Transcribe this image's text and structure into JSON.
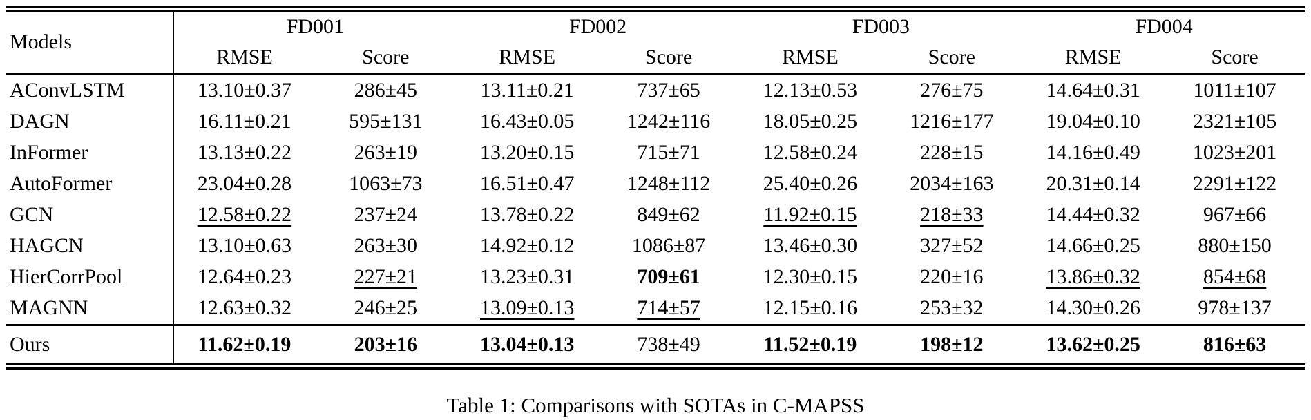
{
  "caption": "Table 1: Comparisons with SOTAs in C-MAPSS",
  "table": {
    "corner_label": "Models",
    "groups": [
      "FD001",
      "FD002",
      "FD003",
      "FD004"
    ],
    "subheaders": [
      "RMSE",
      "Score"
    ],
    "rows": [
      {
        "model": "AConvLSTM",
        "separator_above": false,
        "cells": [
          {
            "text": "13.10±0.37",
            "style": "plain"
          },
          {
            "text": "286±45",
            "style": "plain"
          },
          {
            "text": "13.11±0.21",
            "style": "plain"
          },
          {
            "text": "737±65",
            "style": "plain"
          },
          {
            "text": "12.13±0.53",
            "style": "plain"
          },
          {
            "text": "276±75",
            "style": "plain"
          },
          {
            "text": "14.64±0.31",
            "style": "plain"
          },
          {
            "text": "1011±107",
            "style": "plain"
          }
        ]
      },
      {
        "model": "DAGN",
        "separator_above": false,
        "cells": [
          {
            "text": "16.11±0.21",
            "style": "plain"
          },
          {
            "text": "595±131",
            "style": "plain"
          },
          {
            "text": "16.43±0.05",
            "style": "plain"
          },
          {
            "text": "1242±116",
            "style": "plain"
          },
          {
            "text": "18.05±0.25",
            "style": "plain"
          },
          {
            "text": "1216±177",
            "style": "plain"
          },
          {
            "text": "19.04±0.10",
            "style": "plain"
          },
          {
            "text": "2321±105",
            "style": "plain"
          }
        ]
      },
      {
        "model": "InFormer",
        "separator_above": false,
        "cells": [
          {
            "text": "13.13±0.22",
            "style": "plain"
          },
          {
            "text": "263±19",
            "style": "plain"
          },
          {
            "text": "13.20±0.15",
            "style": "plain"
          },
          {
            "text": "715±71",
            "style": "plain"
          },
          {
            "text": "12.58±0.24",
            "style": "plain"
          },
          {
            "text": "228±15",
            "style": "plain"
          },
          {
            "text": "14.16±0.49",
            "style": "plain"
          },
          {
            "text": "1023±201",
            "style": "plain"
          }
        ]
      },
      {
        "model": "AutoFormer",
        "separator_above": false,
        "cells": [
          {
            "text": "23.04±0.28",
            "style": "plain"
          },
          {
            "text": "1063±73",
            "style": "plain"
          },
          {
            "text": "16.51±0.47",
            "style": "plain"
          },
          {
            "text": "1248±112",
            "style": "plain"
          },
          {
            "text": "25.40±0.26",
            "style": "plain"
          },
          {
            "text": "2034±163",
            "style": "plain"
          },
          {
            "text": "20.31±0.14",
            "style": "plain"
          },
          {
            "text": "2291±122",
            "style": "plain"
          }
        ]
      },
      {
        "model": "GCN",
        "separator_above": false,
        "cells": [
          {
            "text": "12.58±0.22",
            "style": "underline"
          },
          {
            "text": "237±24",
            "style": "plain"
          },
          {
            "text": "13.78±0.22",
            "style": "plain"
          },
          {
            "text": "849±62",
            "style": "plain"
          },
          {
            "text": "11.92±0.15",
            "style": "underline"
          },
          {
            "text": "218±33",
            "style": "underline"
          },
          {
            "text": "14.44±0.32",
            "style": "plain"
          },
          {
            "text": "967±66",
            "style": "plain"
          }
        ]
      },
      {
        "model": "HAGCN",
        "separator_above": false,
        "cells": [
          {
            "text": "13.10±0.63",
            "style": "plain"
          },
          {
            "text": "263±30",
            "style": "plain"
          },
          {
            "text": "14.92±0.12",
            "style": "plain"
          },
          {
            "text": "1086±87",
            "style": "plain"
          },
          {
            "text": "13.46±0.30",
            "style": "plain"
          },
          {
            "text": "327±52",
            "style": "plain"
          },
          {
            "text": "14.66±0.25",
            "style": "plain"
          },
          {
            "text": "880±150",
            "style": "plain"
          }
        ]
      },
      {
        "model": "HierCorrPool",
        "separator_above": false,
        "cells": [
          {
            "text": "12.64±0.23",
            "style": "plain"
          },
          {
            "text": "227±21",
            "style": "underline"
          },
          {
            "text": "13.23±0.31",
            "style": "plain"
          },
          {
            "text": "709±61",
            "style": "bold"
          },
          {
            "text": "12.30±0.15",
            "style": "plain"
          },
          {
            "text": "220±16",
            "style": "plain"
          },
          {
            "text": "13.86±0.32",
            "style": "underline"
          },
          {
            "text": "854±68",
            "style": "underline"
          }
        ]
      },
      {
        "model": "MAGNN",
        "separator_above": false,
        "cells": [
          {
            "text": "12.63±0.32",
            "style": "plain"
          },
          {
            "text": "246±25",
            "style": "plain"
          },
          {
            "text": "13.09±0.13",
            "style": "underline"
          },
          {
            "text": "714±57",
            "style": "underline"
          },
          {
            "text": "12.15±0.16",
            "style": "plain"
          },
          {
            "text": "253±32",
            "style": "plain"
          },
          {
            "text": "14.30±0.26",
            "style": "plain"
          },
          {
            "text": "978±137",
            "style": "plain"
          }
        ]
      },
      {
        "model": "Ours",
        "separator_above": true,
        "cells": [
          {
            "text": "11.62±0.19",
            "style": "bold"
          },
          {
            "text": "203±16",
            "style": "bold"
          },
          {
            "text": "13.04±0.13",
            "style": "bold"
          },
          {
            "text": "738±49",
            "style": "plain"
          },
          {
            "text": "11.52±0.19",
            "style": "bold"
          },
          {
            "text": "198±12",
            "style": "bold"
          },
          {
            "text": "13.62±0.25",
            "style": "bold"
          },
          {
            "text": "816±63",
            "style": "bold"
          }
        ]
      }
    ]
  }
}
